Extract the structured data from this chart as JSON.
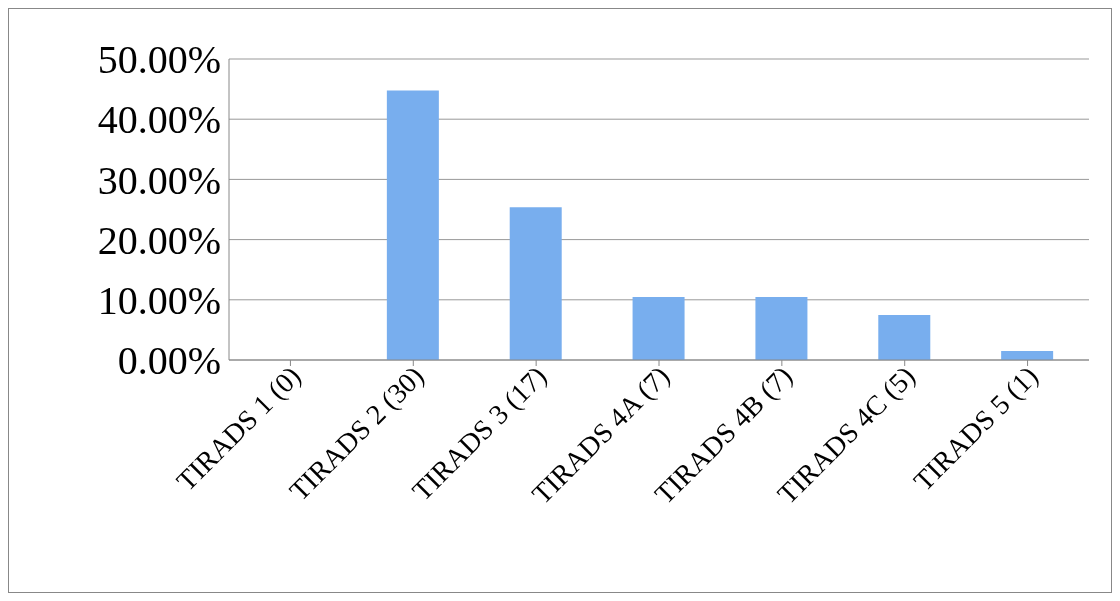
{
  "chart_data": {
    "type": "bar",
    "categories": [
      "TIRADS 1 (0)",
      "TIRADS 2 (30)",
      "TIRADS 3 (17)",
      "TIRADS 4A (7)",
      "TIRADS 4B (7)",
      "TIRADS 4C (5)",
      "TIRADS 5 (1)"
    ],
    "values": [
      0,
      44.78,
      25.37,
      10.45,
      10.45,
      7.46,
      1.49
    ],
    "color": "#78aeee",
    "ylim": [
      0,
      50
    ],
    "yticks": [
      {
        "value": 0,
        "label": "0.00%"
      },
      {
        "value": 10,
        "label": "10.00%"
      },
      {
        "value": 20,
        "label": "20.00%"
      },
      {
        "value": 30,
        "label": "30.00%"
      },
      {
        "value": 40,
        "label": "40.00%"
      },
      {
        "value": 50,
        "label": "50.00%"
      }
    ],
    "grid": "y"
  }
}
